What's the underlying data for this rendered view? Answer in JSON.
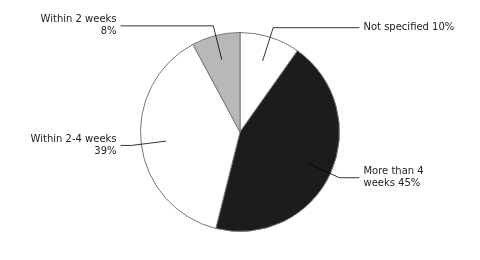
{
  "chart_data": {
    "type": "pie",
    "categories": [
      "Not specified 10%",
      "More than 4\nweeks 45%",
      "Within 2-4 weeks\n39%",
      "Within 2 weeks\n8%"
    ],
    "values": [
      10,
      45,
      39,
      8
    ],
    "colors": [
      "#ffffff",
      "#1c1c1c",
      "#ffffff",
      "#b8b8b8"
    ]
  }
}
